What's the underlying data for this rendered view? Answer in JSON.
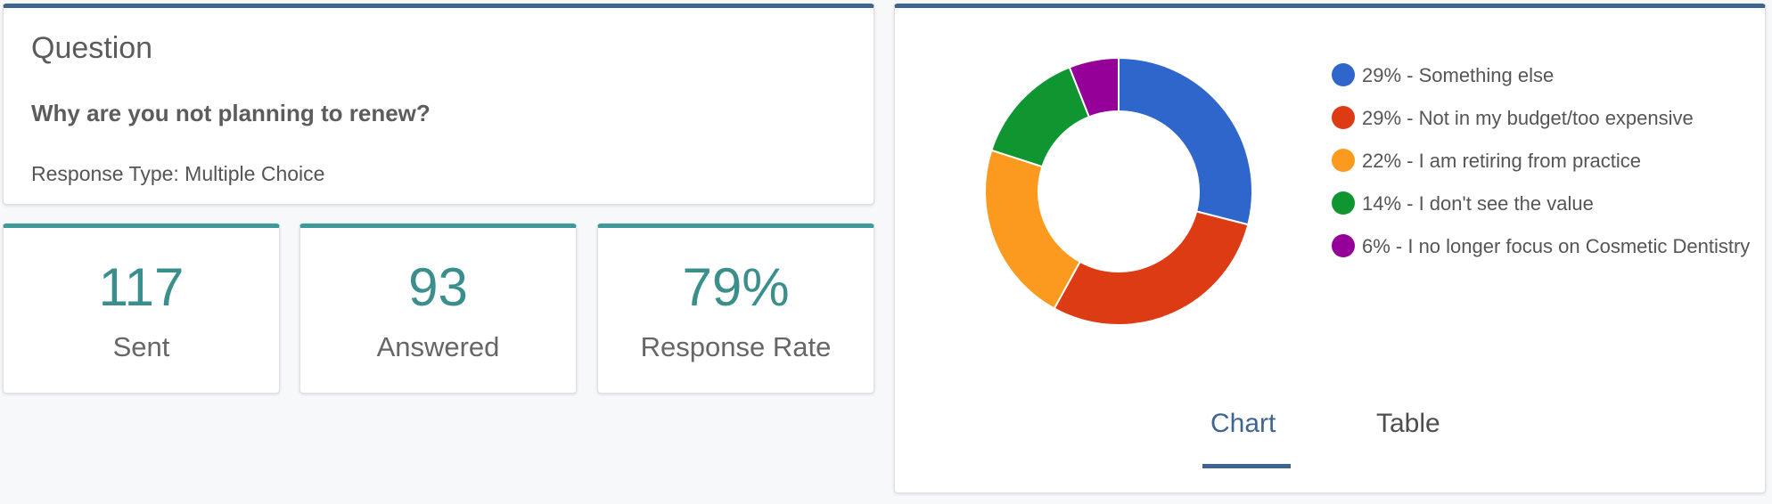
{
  "question": {
    "heading": "Question",
    "text": "Why are you not planning to renew?",
    "response_type": "Response Type: Multiple Choice"
  },
  "stats": {
    "sent": {
      "value": "117",
      "label": "Sent"
    },
    "answered": {
      "value": "93",
      "label": "Answered"
    },
    "rate": {
      "value": "79%",
      "label": "Response Rate"
    }
  },
  "chart_data": {
    "type": "pie",
    "donut": true,
    "categories": [
      "Something else",
      "Not in my budget/too expensive",
      "I am retiring from practice",
      "I don't see the value",
      "I no longer focus on Cosmetic Dentistry"
    ],
    "values": [
      29,
      29,
      22,
      14,
      6
    ],
    "colors": [
      "#2f66cc",
      "#dd3b14",
      "#fb9a1f",
      "#0f9630",
      "#950099"
    ],
    "legend": [
      "29% - Something else",
      "29% - Not in my budget/too expensive",
      "22% - I am retiring from practice",
      "14% - I don't see the value",
      "6% - I no longer focus on Cosmetic Dentistry"
    ],
    "legend_position": "right"
  },
  "tabs": {
    "chart": "Chart",
    "table": "Table",
    "active": "Chart"
  }
}
